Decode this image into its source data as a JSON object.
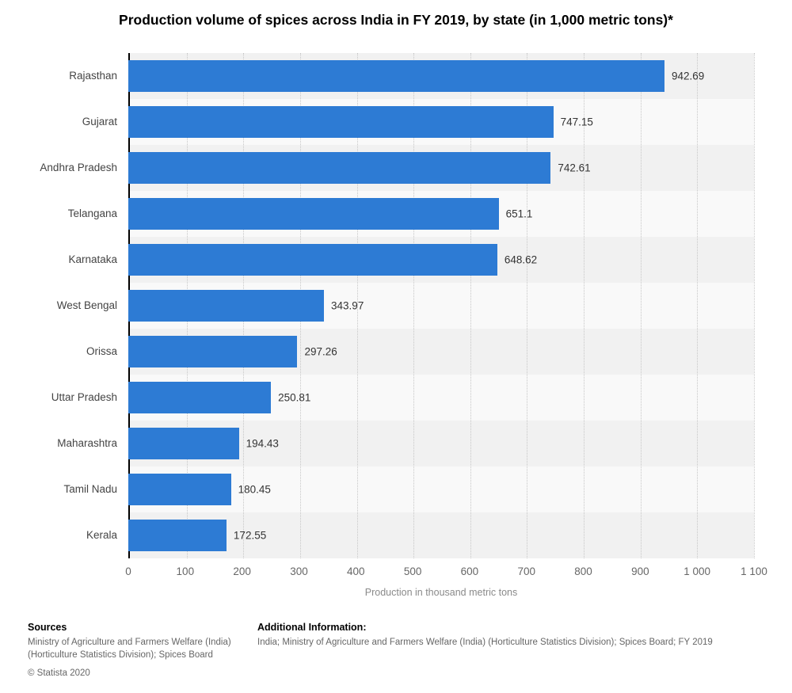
{
  "title": "Production volume of spices across India in FY 2019, by state (in 1,000 metric tons)*",
  "chart_data": {
    "type": "bar",
    "orientation": "horizontal",
    "categories": [
      "Rajasthan",
      "Gujarat",
      "Andhra Pradesh",
      "Telangana",
      "Karnataka",
      "West Bengal",
      "Orissa",
      "Uttar Pradesh",
      "Maharashtra",
      "Tamil Nadu",
      "Kerala"
    ],
    "values": [
      942.69,
      747.15,
      742.61,
      651.1,
      648.62,
      343.97,
      297.26,
      250.81,
      194.43,
      180.45,
      172.55
    ],
    "value_labels": [
      "942.69",
      "747.15",
      "742.61",
      "651.1",
      "648.62",
      "343.97",
      "297.26",
      "250.81",
      "194.43",
      "180.45",
      "172.55"
    ],
    "xlabel": "Production in thousand metric tons",
    "xlim": [
      0,
      1100
    ],
    "x_ticks": [
      0,
      100,
      200,
      300,
      400,
      500,
      600,
      700,
      800,
      900,
      1000,
      1100
    ],
    "x_tick_labels": [
      "0",
      "100",
      "200",
      "300",
      "400",
      "500",
      "600",
      "700",
      "800",
      "900",
      "1 000",
      "1 100"
    ],
    "bar_color": "#2d7bd4",
    "grid": true,
    "legend": "none"
  },
  "footer": {
    "sources_heading": "Sources",
    "sources_line1": "Ministry of Agriculture and Farmers Welfare (India)",
    "sources_line2": "(Horticulture Statistics Division); Spices Board",
    "copyright": "© Statista 2020",
    "additional_heading": "Additional Information:",
    "additional_text": "India; Ministry of Agriculture and Farmers Welfare (India) (Horticulture Statistics Division); Spices Board; FY 2019"
  }
}
